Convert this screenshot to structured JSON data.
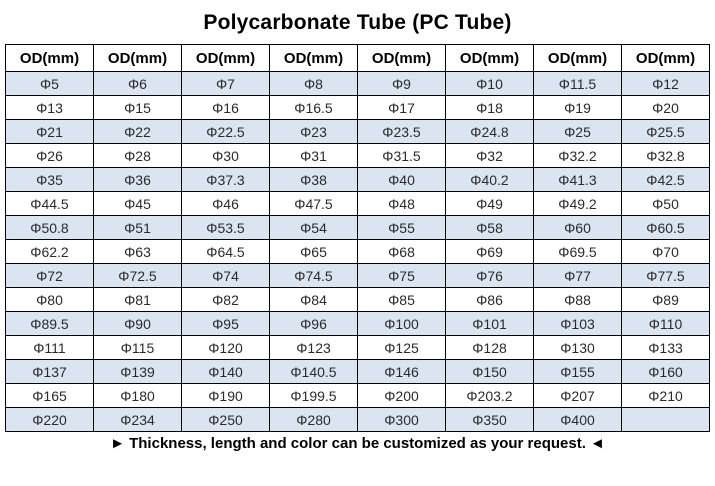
{
  "title": "Polycarbonate Tube (PC Tube)",
  "table": {
    "header": [
      "OD(mm)",
      "OD(mm)",
      "OD(mm)",
      "OD(mm)",
      "OD(mm)",
      "OD(mm)",
      "OD(mm)",
      "OD(mm)"
    ],
    "rows": [
      [
        "Φ5",
        "Φ6",
        "Φ7",
        "Φ8",
        "Φ9",
        "Φ10",
        "Φ11.5",
        "Φ12"
      ],
      [
        "Φ13",
        "Φ15",
        "Φ16",
        "Φ16.5",
        "Φ17",
        "Φ18",
        "Φ19",
        "Φ20"
      ],
      [
        "Φ21",
        "Φ22",
        "Φ22.5",
        "Φ23",
        "Φ23.5",
        "Φ24.8",
        "Φ25",
        "Φ25.5"
      ],
      [
        "Φ26",
        "Φ28",
        "Φ30",
        "Φ31",
        "Φ31.5",
        "Φ32",
        "Φ32.2",
        "Φ32.8"
      ],
      [
        "Φ35",
        "Φ36",
        "Φ37.3",
        "Φ38",
        "Φ40",
        "Φ40.2",
        "Φ41.3",
        "Φ42.5"
      ],
      [
        "Φ44.5",
        "Φ45",
        "Φ46",
        "Φ47.5",
        "Φ48",
        "Φ49",
        "Φ49.2",
        "Φ50"
      ],
      [
        "Φ50.8",
        "Φ51",
        "Φ53.5",
        "Φ54",
        "Φ55",
        "Φ58",
        "Φ60",
        "Φ60.5"
      ],
      [
        "Φ62.2",
        "Φ63",
        "Φ64.5",
        "Φ65",
        "Φ68",
        "Φ69",
        "Φ69.5",
        "Φ70"
      ],
      [
        "Φ72",
        "Φ72.5",
        "Φ74",
        "Φ74.5",
        "Φ75",
        "Φ76",
        "Φ77",
        "Φ77.5"
      ],
      [
        "Φ80",
        "Φ81",
        "Φ82",
        "Φ84",
        "Φ85",
        "Φ86",
        "Φ88",
        "Φ89"
      ],
      [
        "Φ89.5",
        "Φ90",
        "Φ95",
        "Φ96",
        "Φ100",
        "Φ101",
        "Φ103",
        "Φ110"
      ],
      [
        "Φ111",
        "Φ115",
        "Φ120",
        "Φ123",
        "Φ125",
        "Φ128",
        "Φ130",
        "Φ133"
      ],
      [
        "Φ137",
        "Φ139",
        "Φ140",
        "Φ140.5",
        "Φ146",
        "Φ150",
        "Φ155",
        "Φ160"
      ],
      [
        "Φ165",
        "Φ180",
        "Φ190",
        "Φ199.5",
        "Φ200",
        "Φ203.2",
        "Φ207",
        "Φ210"
      ],
      [
        "Φ220",
        "Φ234",
        "Φ250",
        "Φ280",
        "Φ300",
        "Φ350",
        "Φ400",
        ""
      ]
    ]
  },
  "footer": "► Thickness, length and color can be customized as your request. ◄",
  "colors": {
    "row_shade": "#dbe4f1",
    "border": "#000000",
    "text": "#2b2b2b"
  }
}
